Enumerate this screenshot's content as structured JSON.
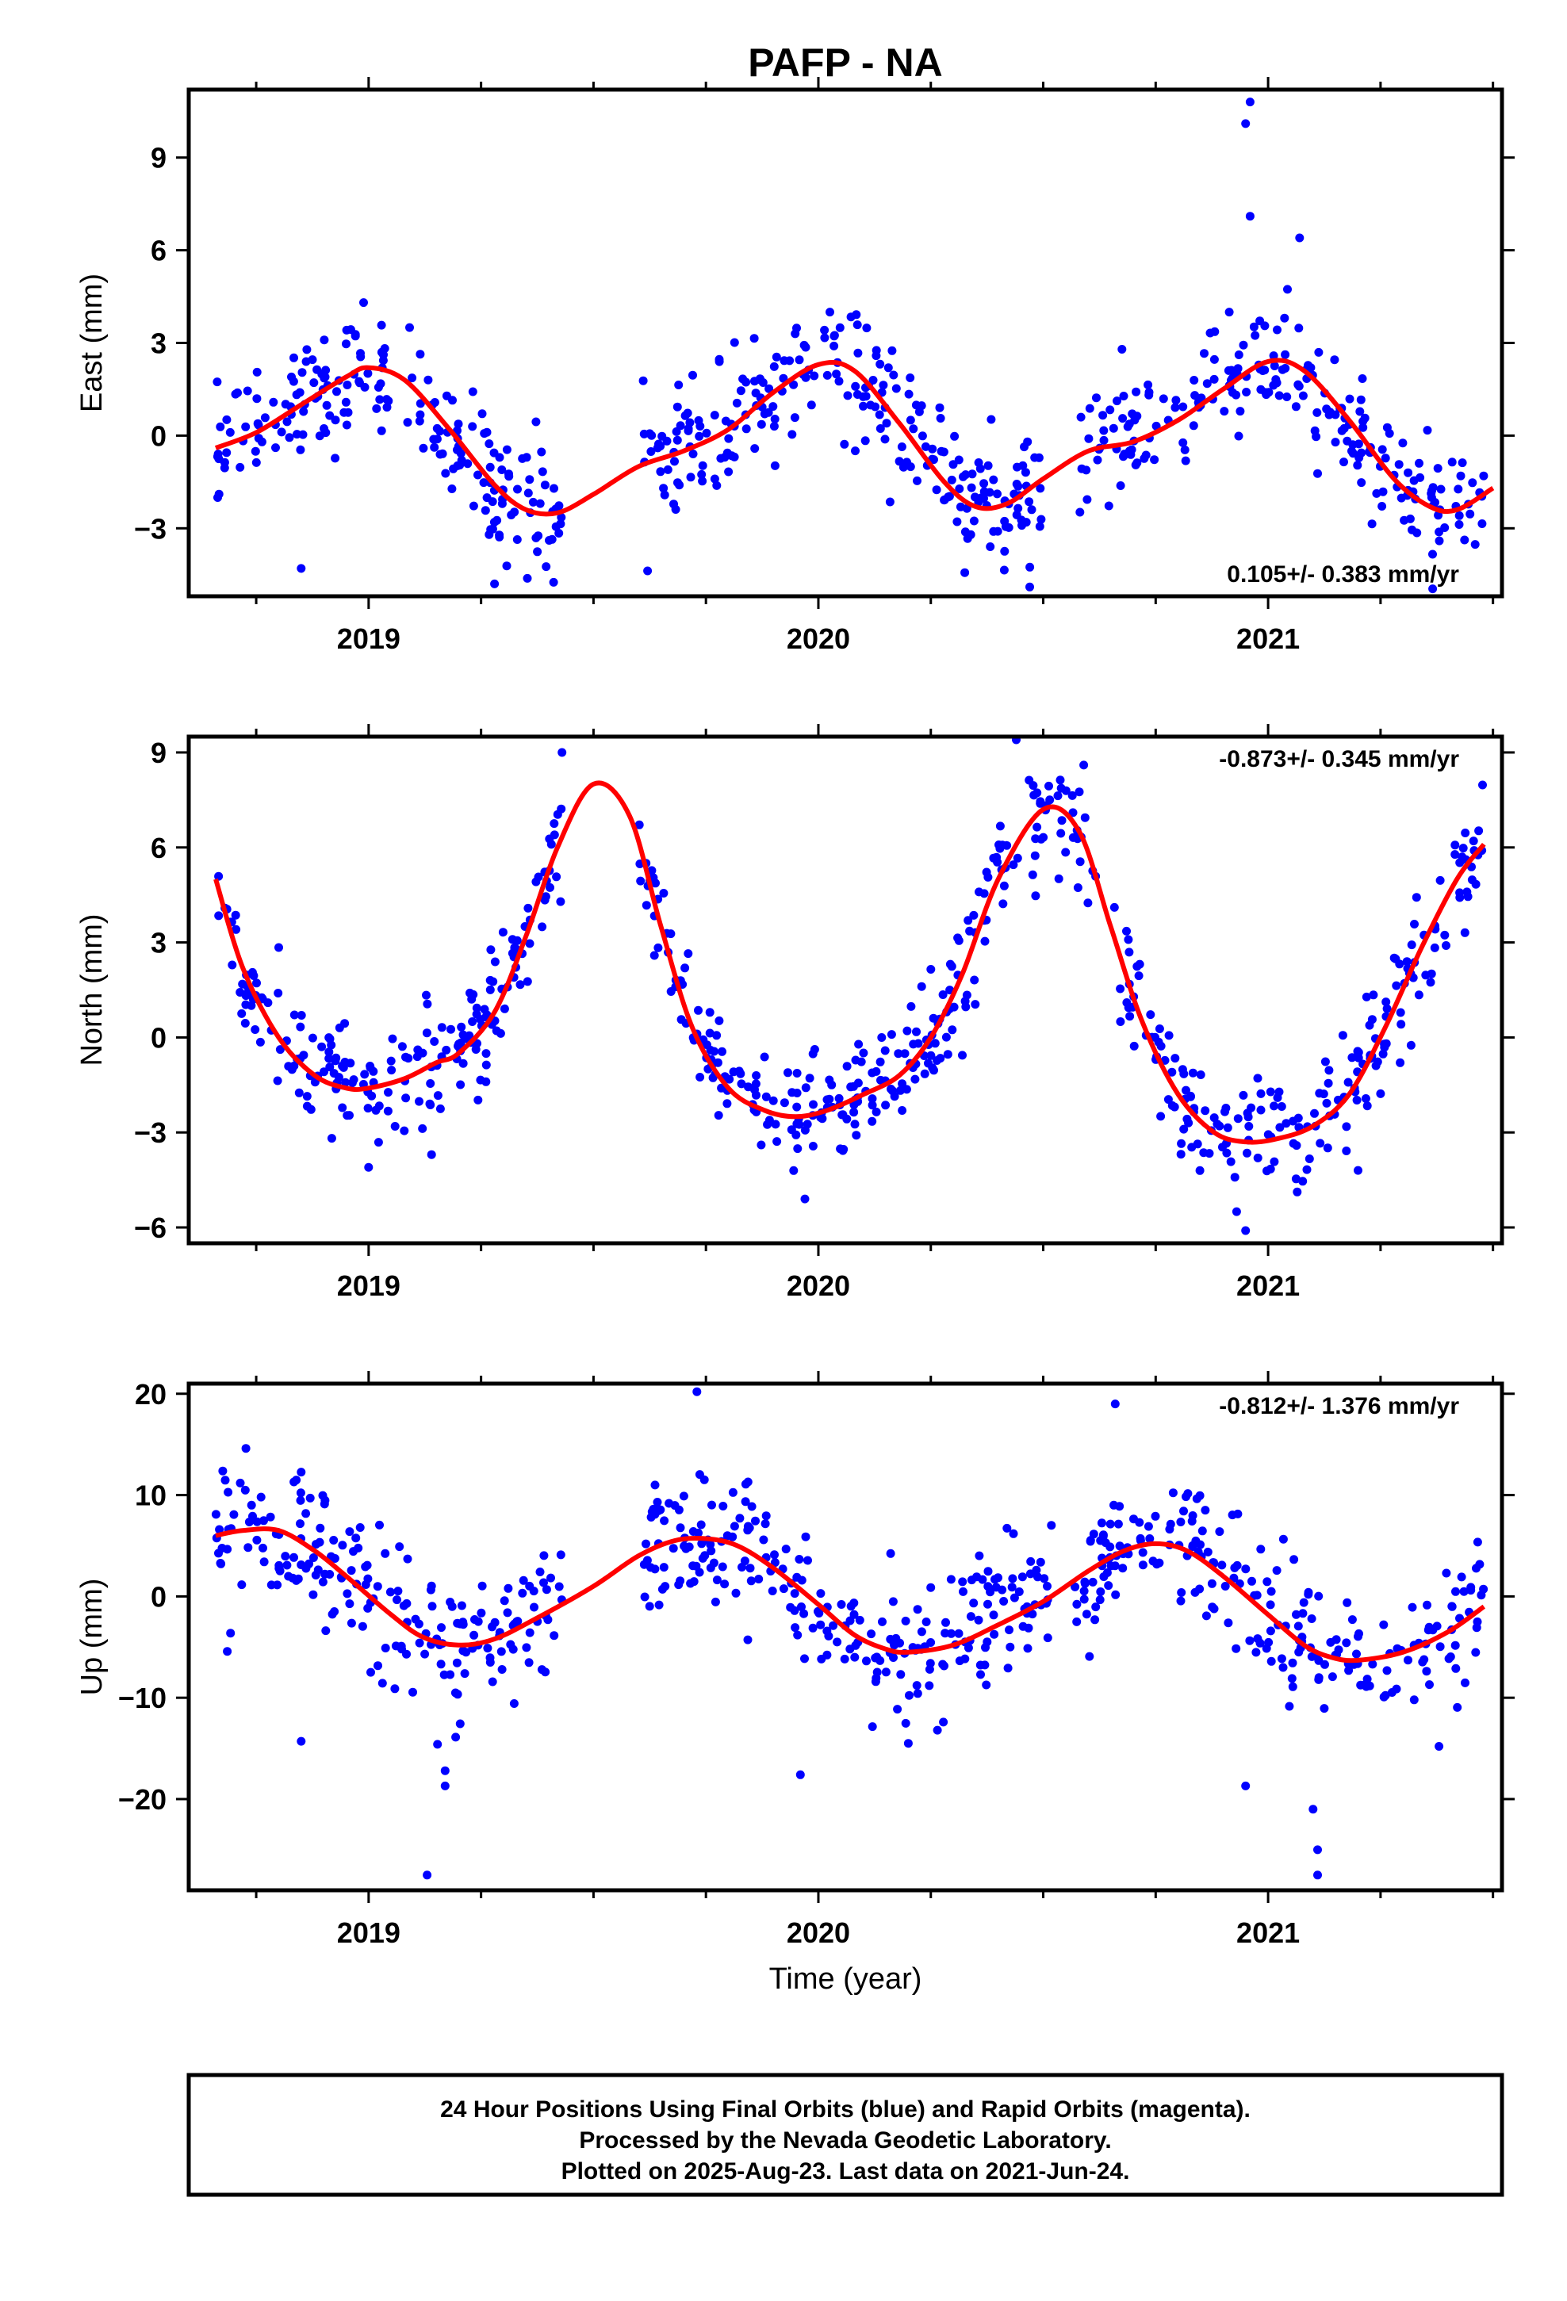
{
  "figure": {
    "title": "PAFP - NA",
    "xlabel": "Time (year)",
    "footer": [
      "24 Hour Positions Using Final Orbits (blue) and Rapid Orbits (magenta).",
      "Processed by the Nevada Geodetic Laboratory.",
      "Plotted on 2025-Aug-23. Last data on 2021-Jun-24."
    ],
    "colors": {
      "points": "#0000ff",
      "fit": "#ff0000",
      "frame": "#000000"
    }
  },
  "chart_data": [
    {
      "type": "scatter",
      "component": "east",
      "ylabel": "East (mm)",
      "rate_label": "0.105+/- 0.383 mm/yr",
      "xlim": [
        2018.6,
        2021.52
      ],
      "ylim": [
        -5.2,
        11.2
      ],
      "yticks": [
        -3,
        0,
        3,
        6,
        9
      ],
      "xticks": [
        2019,
        2020,
        2021
      ],
      "xtick_labels": [
        "2019",
        "2020",
        "2021"
      ],
      "fit": {
        "x": [
          2018.66,
          2018.75,
          2018.85,
          2018.95,
          2019.0,
          2019.08,
          2019.18,
          2019.28,
          2019.35,
          2019.42,
          2019.5,
          2019.6,
          2019.7,
          2019.8,
          2019.9,
          2020.0,
          2020.08,
          2020.18,
          2020.28,
          2020.35,
          2020.42,
          2020.5,
          2020.6,
          2020.7,
          2020.8,
          2020.9,
          2021.0,
          2021.08,
          2021.18,
          2021.28,
          2021.36,
          2021.42,
          2021.5
        ],
        "y": [
          -0.4,
          0.1,
          1.0,
          1.9,
          2.2,
          1.8,
          0.2,
          -1.6,
          -2.4,
          -2.5,
          -1.9,
          -1.0,
          -0.5,
          0.2,
          1.4,
          2.3,
          2.1,
          0.4,
          -1.5,
          -2.3,
          -2.2,
          -1.4,
          -0.5,
          -0.2,
          0.5,
          1.5,
          2.4,
          2.1,
          0.5,
          -1.4,
          -2.3,
          -2.4,
          -1.7
        ]
      },
      "segments": [
        {
          "x0": 2018.66,
          "x1": 2019.43,
          "n": 200,
          "spread": 1.0
        },
        {
          "x0": 2019.61,
          "x1": 2020.52,
          "n": 240,
          "spread": 1.0
        },
        {
          "x0": 2020.58,
          "x1": 2021.48,
          "n": 220,
          "spread": 1.0
        }
      ],
      "outliers": [
        [
          2018.85,
          -4.3
        ],
        [
          2020.95,
          10.1
        ],
        [
          2020.96,
          10.8
        ],
        [
          2020.96,
          7.1
        ],
        [
          2021.07,
          6.4
        ],
        [
          2019.28,
          -4.8
        ],
        [
          2020.47,
          -4.9
        ]
      ]
    },
    {
      "type": "scatter",
      "component": "north",
      "ylabel": "North (mm)",
      "rate_label": "-0.873+/- 0.345 mm/yr",
      "xlim": [
        2018.6,
        2021.52
      ],
      "ylim": [
        -6.5,
        9.5
      ],
      "yticks": [
        -6,
        -3,
        0,
        3,
        6,
        9
      ],
      "xticks": [
        2019,
        2020,
        2021
      ],
      "xtick_labels": [
        "2019",
        "2020",
        "2021"
      ],
      "fit": {
        "x": [
          2018.66,
          2018.72,
          2018.8,
          2018.88,
          2018.95,
          2019.0,
          2019.08,
          2019.15,
          2019.2,
          2019.28,
          2019.35,
          2019.42,
          2019.5,
          2019.58,
          2019.65,
          2019.72,
          2019.8,
          2019.88,
          2019.95,
          2020.02,
          2020.1,
          2020.18,
          2020.25,
          2020.32,
          2020.4,
          2020.5,
          2020.58,
          2020.65,
          2020.72,
          2020.8,
          2020.88,
          2020.95,
          2021.02,
          2021.1,
          2021.18,
          2021.26,
          2021.34,
          2021.42,
          2021.48
        ],
        "y": [
          5.0,
          2.2,
          0.0,
          -1.2,
          -1.6,
          -1.6,
          -1.3,
          -0.8,
          -0.5,
          0.8,
          3.2,
          6.0,
          8.0,
          7.0,
          3.5,
          0.3,
          -1.6,
          -2.3,
          -2.5,
          -2.3,
          -1.8,
          -1.2,
          0.0,
          2.0,
          5.0,
          7.2,
          6.5,
          3.5,
          0.5,
          -1.8,
          -3.0,
          -3.3,
          -3.2,
          -2.8,
          -1.8,
          0.3,
          2.8,
          5.0,
          6.1
        ]
      },
      "segments": [
        {
          "x0": 2018.66,
          "x1": 2019.43,
          "n": 200,
          "spread": 0.9
        },
        {
          "x0": 2019.6,
          "x1": 2020.62,
          "n": 260,
          "spread": 0.9
        },
        {
          "x0": 2020.65,
          "x1": 2021.48,
          "n": 200,
          "spread": 0.9
        }
      ],
      "outliers": [
        [
          2019.0,
          -4.1
        ],
        [
          2019.14,
          -3.7
        ],
        [
          2019.43,
          9.0
        ],
        [
          2020.44,
          9.4
        ],
        [
          2020.95,
          -6.1
        ],
        [
          2020.93,
          -5.5
        ],
        [
          2021.2,
          -4.2
        ],
        [
          2019.97,
          -5.1
        ],
        [
          2020.59,
          8.6
        ]
      ]
    },
    {
      "type": "scatter",
      "component": "up",
      "ylabel": "Up (mm)",
      "rate_label": "-0.812+/- 1.376 mm/yr",
      "xlim": [
        2018.6,
        2021.52
      ],
      "ylim": [
        -29,
        21
      ],
      "yticks": [
        -20,
        -10,
        0,
        10,
        20
      ],
      "xticks": [
        2019,
        2020,
        2021
      ],
      "xtick_labels": [
        "2019",
        "2020",
        "2021"
      ],
      "fit": {
        "x": [
          2018.66,
          2018.72,
          2018.8,
          2018.88,
          2018.95,
          2019.05,
          2019.12,
          2019.2,
          2019.28,
          2019.38,
          2019.5,
          2019.6,
          2019.68,
          2019.75,
          2019.82,
          2019.9,
          2020.0,
          2020.08,
          2020.15,
          2020.2,
          2020.3,
          2020.4,
          2020.5,
          2020.6,
          2020.68,
          2020.75,
          2020.82,
          2020.9,
          2021.0,
          2021.08,
          2021.14,
          2021.2,
          2021.3,
          2021.4,
          2021.48
        ],
        "y": [
          6.0,
          6.5,
          6.5,
          4.5,
          2.0,
          -1.8,
          -4.0,
          -4.8,
          -4.2,
          -2.0,
          1.0,
          4.0,
          5.5,
          5.7,
          5.0,
          2.8,
          -0.8,
          -3.8,
          -5.2,
          -5.5,
          -4.8,
          -2.8,
          -0.5,
          2.5,
          4.5,
          5.2,
          4.5,
          2.0,
          -1.8,
          -4.8,
          -6.0,
          -6.3,
          -5.5,
          -3.5,
          -1.0
        ]
      },
      "segments": [
        {
          "x0": 2018.66,
          "x1": 2019.43,
          "n": 200,
          "spread": 3.5
        },
        {
          "x0": 2019.61,
          "x1": 2020.52,
          "n": 240,
          "spread": 3.5
        },
        {
          "x0": 2020.57,
          "x1": 2021.48,
          "n": 220,
          "spread": 3.5
        }
      ],
      "outliers": [
        [
          2019.13,
          -27.5
        ],
        [
          2019.17,
          -18.7
        ],
        [
          2019.17,
          -17.2
        ],
        [
          2018.85,
          -14.3
        ],
        [
          2019.73,
          20.2
        ],
        [
          2020.66,
          19.0
        ],
        [
          2020.95,
          -18.7
        ],
        [
          2021.11,
          -25.0
        ],
        [
          2021.11,
          -27.5
        ],
        [
          2021.1,
          -21.0
        ],
        [
          2019.96,
          -17.6
        ],
        [
          2020.2,
          -14.5
        ],
        [
          2021.38,
          -14.8
        ]
      ]
    }
  ]
}
